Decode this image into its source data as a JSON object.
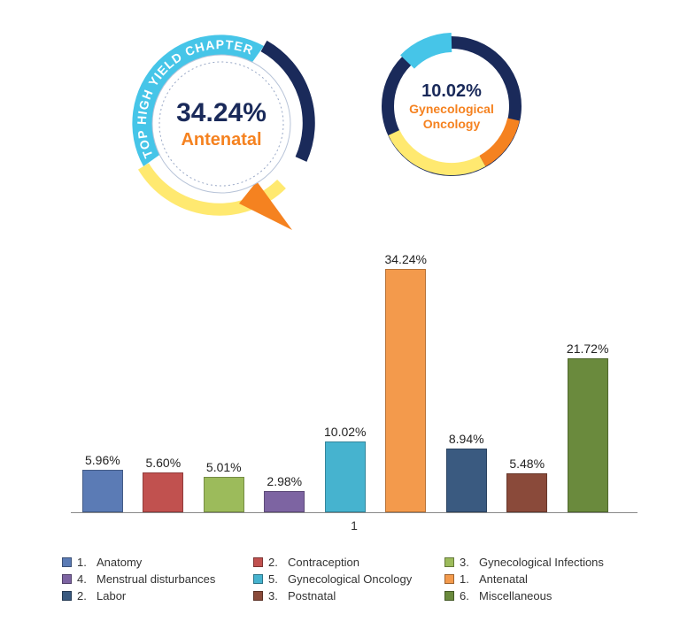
{
  "badge_big": {
    "arc_text": "TOP HIGH YIELD CHAPTER",
    "percent": "34.24%",
    "label": "Antenatal",
    "ring_colors": {
      "arc_band": "#46c5e8",
      "yellow": "#ffe970",
      "navy": "#1a2a5a",
      "orange": "#f58220"
    }
  },
  "badge_small": {
    "percent": "10.02%",
    "label": "Gynecological\nOncology",
    "ring_colors": {
      "blue": "#46c5e8",
      "yellow": "#ffe970",
      "navy": "#1a2a5a",
      "orange": "#f58220"
    }
  },
  "bar_chart": {
    "type": "bar",
    "y_max": 36,
    "bar_width_pct": 7.2,
    "gap_pct": 3.5,
    "left_pad_pct": 2,
    "x_axis_label": "1",
    "label_fontsize": 14,
    "axis_color": "#888888",
    "bars": [
      {
        "value": 5.96,
        "text": "5.96%",
        "color": "#5b7bb5"
      },
      {
        "value": 5.6,
        "text": "5.60%",
        "color": "#c1514f"
      },
      {
        "value": 5.01,
        "text": "5.01%",
        "color": "#9cbb5b"
      },
      {
        "value": 2.98,
        "text": "2.98%",
        "color": "#7d64a2"
      },
      {
        "value": 10.02,
        "text": "10.02%",
        "color": "#46b3cf"
      },
      {
        "value": 34.24,
        "text": "34.24%",
        "color": "#f39a4c"
      },
      {
        "value": 8.94,
        "text": "8.94%",
        "color": "#3a5a80"
      },
      {
        "value": 5.48,
        "text": "5.48%",
        "color": "#8a4a3a"
      },
      {
        "value": 21.72,
        "text": "21.72%",
        "color": "#6a8a3d"
      }
    ]
  },
  "legend": {
    "items": [
      {
        "num": "1.",
        "label": "Anatomy",
        "color": "#5b7bb5"
      },
      {
        "num": "2.",
        "label": "Contraception",
        "color": "#c1514f"
      },
      {
        "num": "3.",
        "label": "Gynecological Infections",
        "color": "#9cbb5b"
      },
      {
        "num": "4.",
        "label": "Menstrual disturbances",
        "color": "#7d64a2"
      },
      {
        "num": "5.",
        "label": "Gynecological Oncology",
        "color": "#46b3cf"
      },
      {
        "num": "1.",
        "label": "Antenatal",
        "color": "#f39a4c"
      },
      {
        "num": "2.",
        "label": "Labor",
        "color": "#3a5a80"
      },
      {
        "num": "3.",
        "label": "Postnatal",
        "color": "#8a4a3a"
      },
      {
        "num": "6.",
        "label": "Miscellaneous",
        "color": "#6a8a3d"
      }
    ]
  }
}
